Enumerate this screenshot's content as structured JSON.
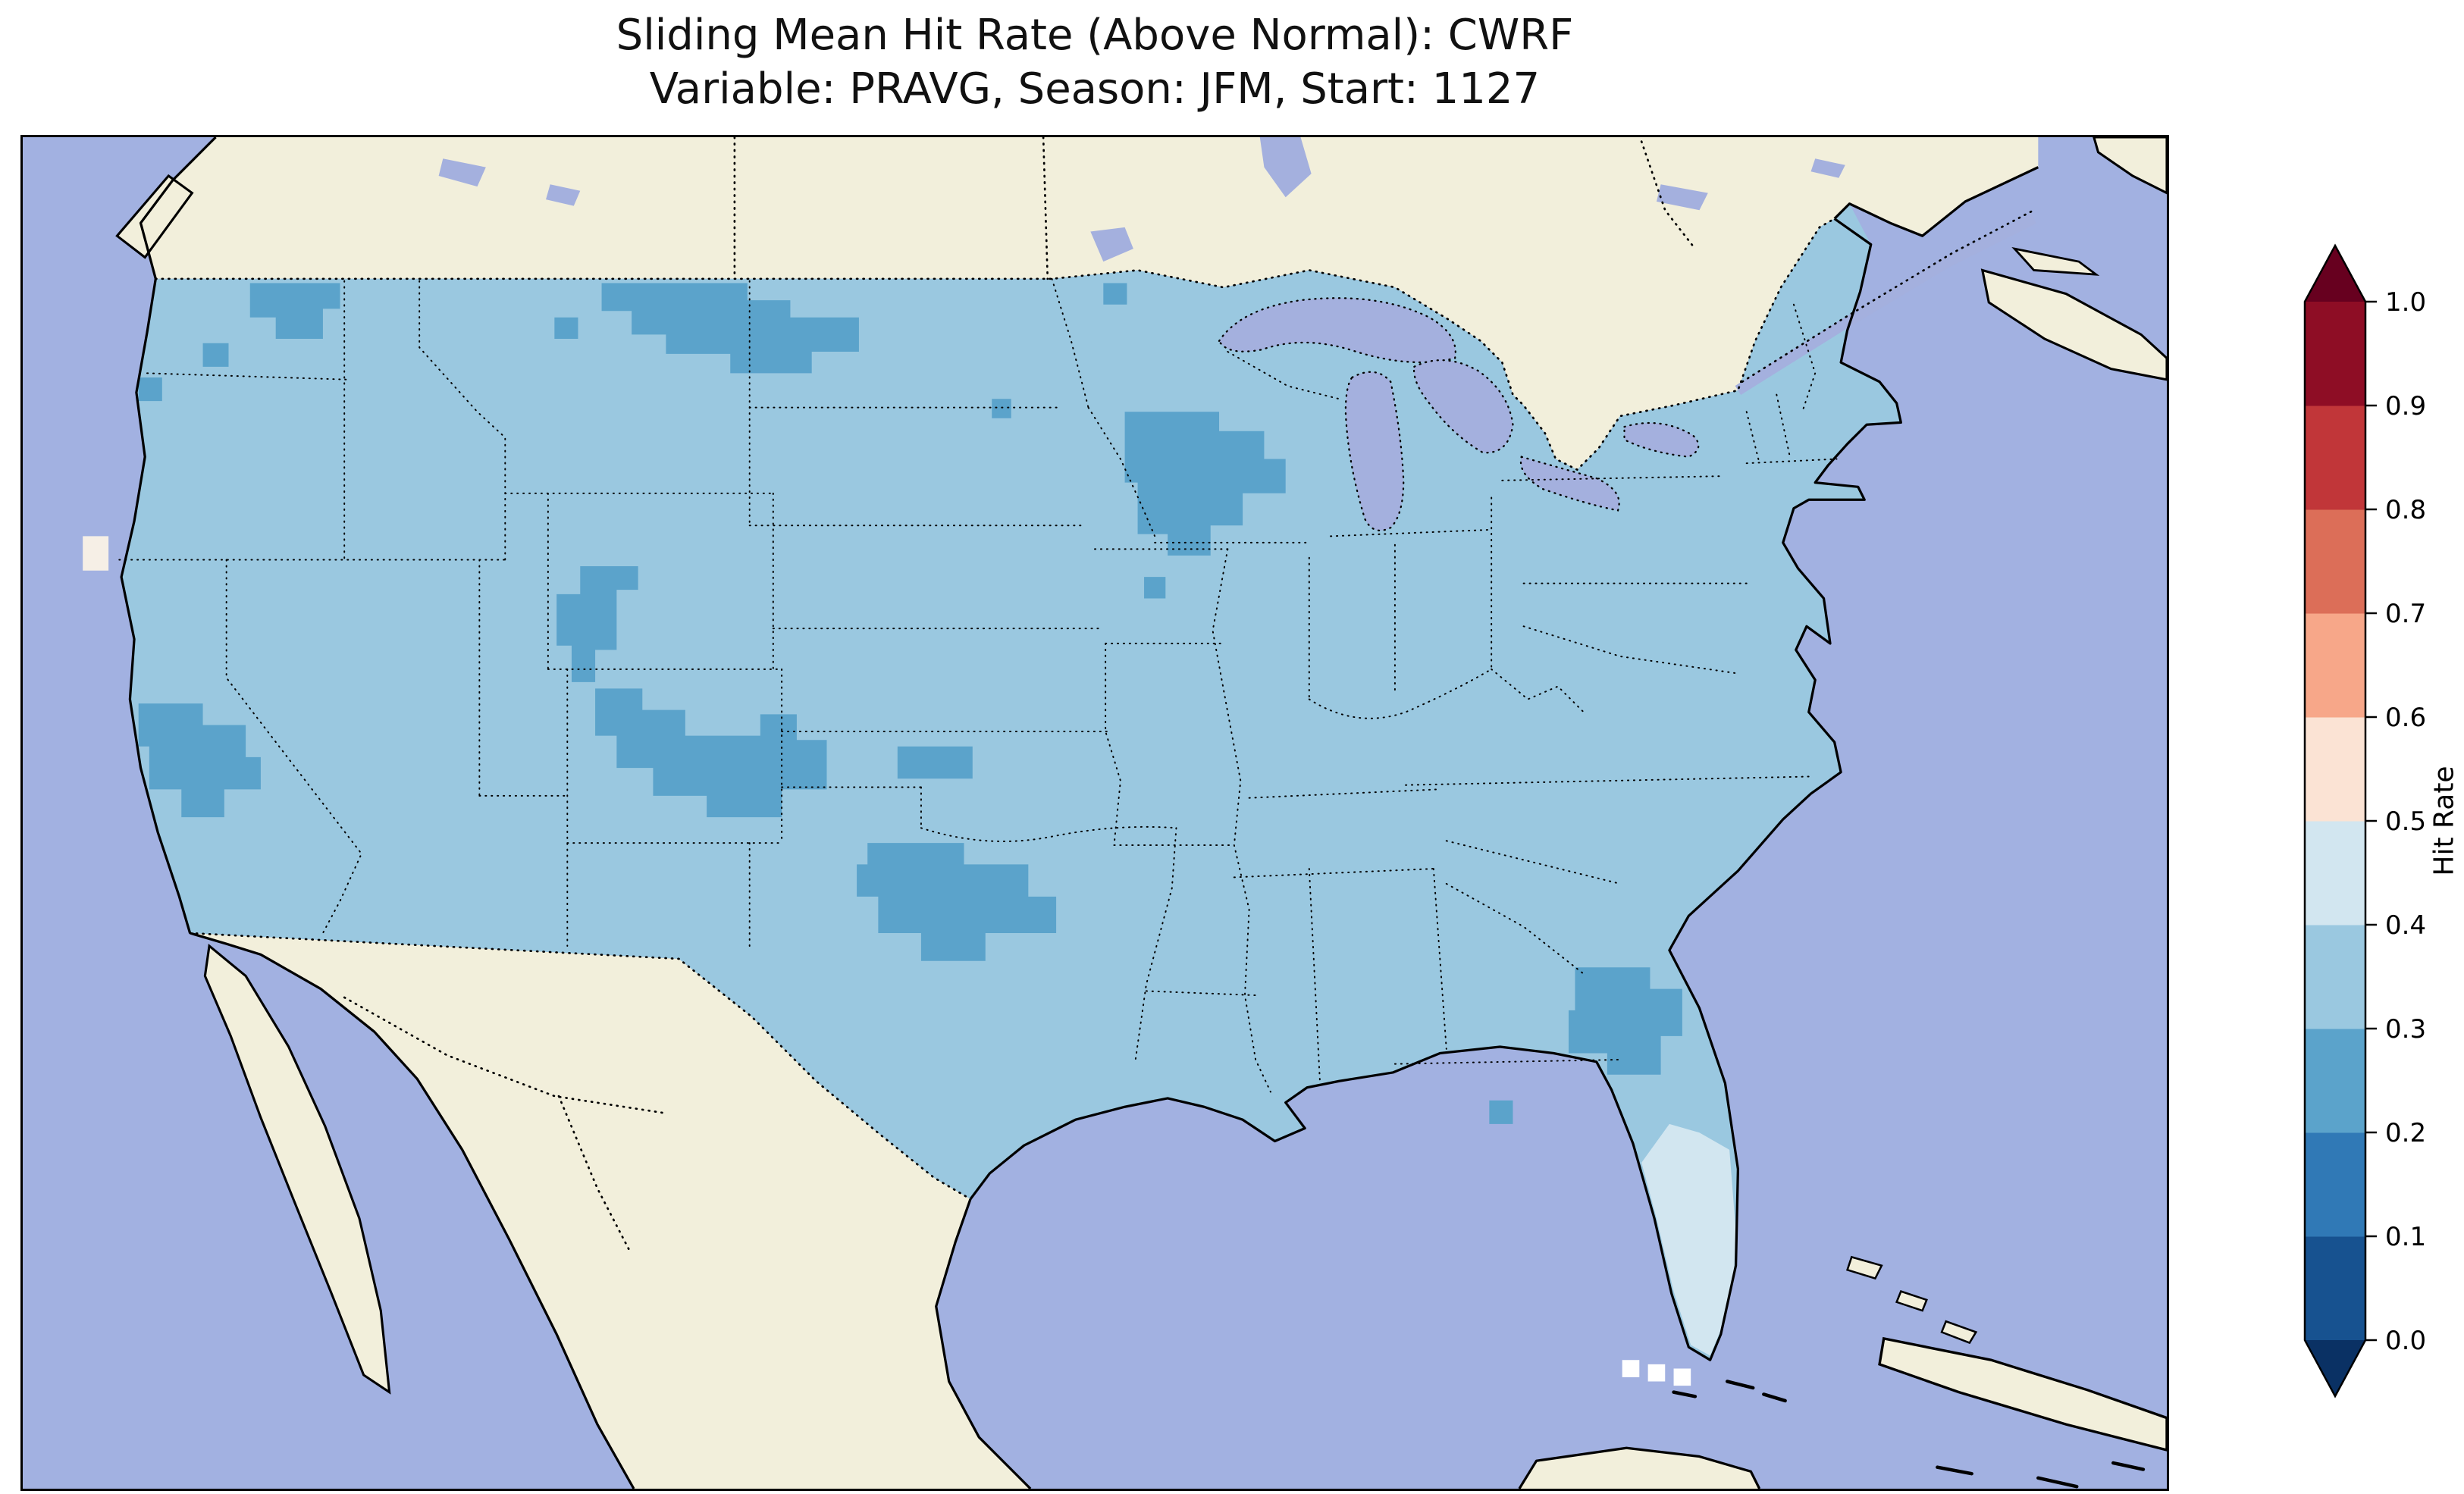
{
  "title": {
    "line1": "Sliding Mean Hit Rate (Above Normal): CWRF",
    "line2": "Variable: PRAVG, Season: JFM, Start: 1127"
  },
  "map": {
    "ocean_color": "#a2b1e1",
    "land_color": "#f2efdb",
    "lake_color": "#a4b0de",
    "base_color": "#9ac8e0",
    "patch_color": "#5ba3cb",
    "pale_color": "#d2e6f0",
    "spot_color": "#f6efe6",
    "white_cell_color": "#ffffff"
  },
  "chart_data": {
    "type": "heatmap",
    "title": "Sliding Mean Hit Rate (Above Normal): CWRF",
    "subtitle": "Variable: PRAVG, Season: JFM, Start: 1127",
    "model": "CWRF",
    "metric": "Sliding Mean Hit Rate (Above Normal)",
    "variable": "PRAVG",
    "season": "JFM",
    "start": "1127",
    "region": "Contiguous United States with southern Canada, Mexico and Caribbean context",
    "colorbar": {
      "label": "Hit Rate",
      "position": "right",
      "extend": "both",
      "range": [
        0.0,
        1.0
      ],
      "levels": [
        0.0,
        0.1,
        0.2,
        0.3,
        0.4,
        0.5,
        0.6,
        0.7,
        0.8,
        0.9,
        1.0
      ],
      "tick_labels": [
        "0.0",
        "0.1",
        "0.2",
        "0.3",
        "0.4",
        "0.5",
        "0.6",
        "0.7",
        "0.8",
        "0.9",
        "1.0"
      ],
      "bin_colors": [
        "#175290",
        "#3079b6",
        "#5ba3cb",
        "#9ac8e0",
        "#d2e6f0",
        "#fbe3d4",
        "#f7a789",
        "#dc6e58",
        "#c13639",
        "#8e0d25"
      ],
      "under_color": "#0a3164",
      "over_color": "#67001f"
    },
    "dominant_bin": "0.3–0.4",
    "value_regions": [
      {
        "area": "most of the contiguous United States",
        "hit_rate_bin": "0.3–0.4"
      },
      {
        "area": "north-central Montana",
        "hit_rate_bin": "0.2–0.3"
      },
      {
        "area": "northern Washington",
        "hit_rate_bin": "0.2–0.3"
      },
      {
        "area": "northern Minnesota / northwestern Wisconsin",
        "hit_rate_bin": "0.2–0.3"
      },
      {
        "area": "Utah–Colorado Rockies",
        "hit_rate_bin": "0.2–0.3"
      },
      {
        "area": "central California",
        "hit_rate_bin": "0.2–0.3"
      },
      {
        "area": "western Oklahoma / Texas panhandle region",
        "hit_rate_bin": "0.2–0.3"
      },
      {
        "area": "central Georgia",
        "hit_rate_bin": "0.2–0.3"
      },
      {
        "area": "southern Florida",
        "hit_rate_bin": "0.4–0.5"
      },
      {
        "area": "central California coast spot",
        "hit_rate_bin": "0.5–0.6"
      }
    ]
  }
}
